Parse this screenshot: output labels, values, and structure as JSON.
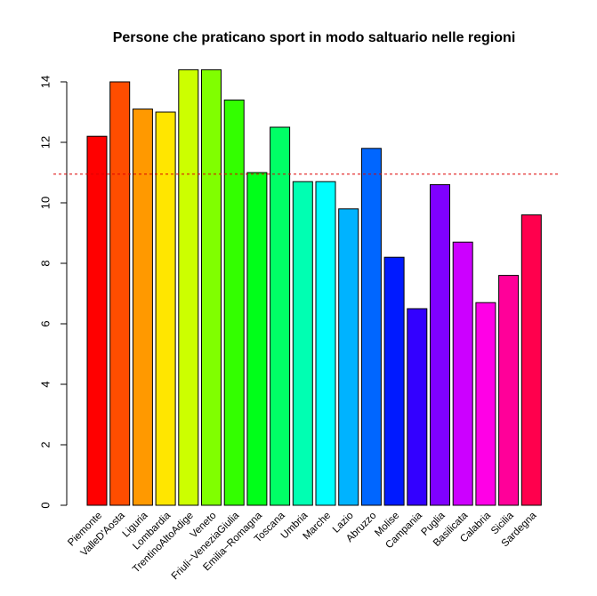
{
  "chart_data": {
    "type": "bar",
    "title": "Persone che praticano sport in modo saltuario nelle regioni",
    "xlabel": "",
    "ylabel": "",
    "ylim": [
      0,
      14.4
    ],
    "yticks": [
      0,
      2,
      4,
      6,
      8,
      10,
      12,
      14
    ],
    "categories": [
      "Piemonte",
      "ValleD'Aosta",
      "Liguria",
      "Lombardia",
      "TrentinoAltoAdige",
      "Veneto",
      "Friuli−VeneziaGiulia",
      "Emilia−Romagna",
      "Toscana",
      "Umbria",
      "Marche",
      "Lazio",
      "Abruzzo",
      "Molise",
      "Campania",
      "Puglia",
      "Basilicata",
      "Calabria",
      "Sicilia",
      "Sardegna"
    ],
    "values": [
      12.2,
      14.0,
      13.1,
      13.0,
      14.4,
      14.4,
      13.4,
      11.0,
      12.5,
      10.7,
      10.7,
      9.8,
      11.8,
      8.2,
      6.5,
      10.6,
      8.7,
      6.7,
      7.6,
      9.6
    ],
    "colors": [
      "#FF0000",
      "#FF4D00",
      "#FF9900",
      "#FFE600",
      "#CCFF00",
      "#80FF00",
      "#33FF00",
      "#00FF19",
      "#00FF66",
      "#00FFB2",
      "#00FFFF",
      "#00B3FF",
      "#0066FF",
      "#001AFF",
      "#3300FF",
      "#7F00FF",
      "#CC00FF",
      "#FF00E6",
      "#FF0099",
      "#FF004D"
    ],
    "reference_line": {
      "value": 10.95,
      "color": "#DD0000",
      "style": "dashed"
    },
    "grid": false,
    "legend": "none"
  }
}
